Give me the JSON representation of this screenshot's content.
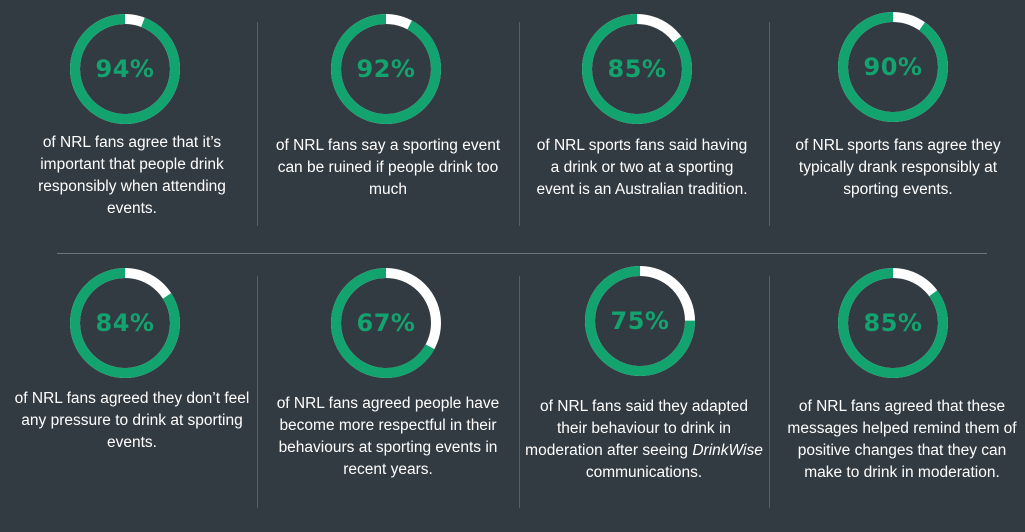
{
  "colors": {
    "background": "#333b42",
    "ring_fill": "#12a36f",
    "ring_remainder": "#ffffff",
    "text": "#ffffff",
    "percent_text": "#12a36f"
  },
  "chart_data": {
    "type": "donut",
    "stats": [
      {
        "value": 94,
        "label": "94%",
        "caption": "of NRL fans agree that it’s important that people drink responsibly when attending events."
      },
      {
        "value": 92,
        "label": "92%",
        "caption": "of NRL fans say a sporting event can be ruined if people drink too much"
      },
      {
        "value": 85,
        "label": "85%",
        "caption": "of NRL sports fans said having a drink or two at a sporting event is an Australian tradition."
      },
      {
        "value": 90,
        "label": "90%",
        "caption": "of NRL sports fans agree they typically drank responsibly at sporting events."
      },
      {
        "value": 84,
        "label": "84%",
        "caption": "of NRL fans agreed they don’t feel any pressure to drink at sporting events."
      },
      {
        "value": 67,
        "label": "67%",
        "caption": "of NRL fans agreed people have become more respectful in their behaviours at sporting events in recent years."
      },
      {
        "value": 75,
        "label": "75%",
        "caption_before": "of NRL fans said they adapted their behaviour to drink in moderation after seeing",
        "caption_italic": "DrinkWise",
        "caption_after": "communications."
      },
      {
        "value": 85,
        "label": "85%",
        "caption": "of NRL fans agreed that these messages helped remind them of positive changes that they can make to drink in moderation."
      }
    ]
  }
}
